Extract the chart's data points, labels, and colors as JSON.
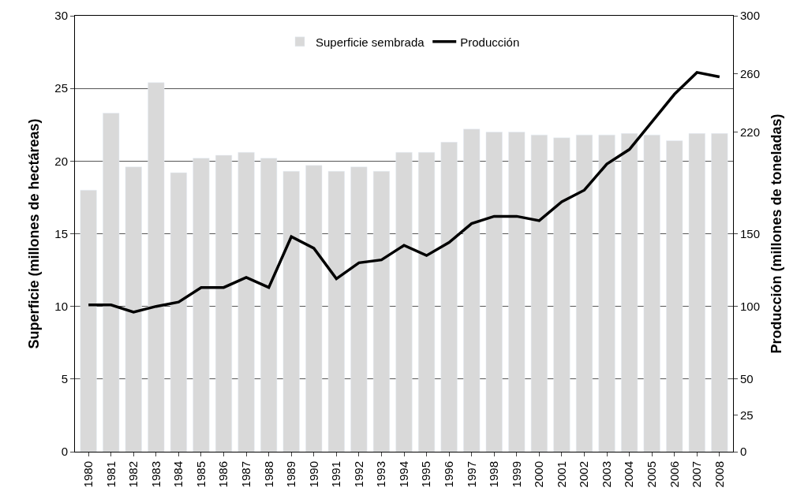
{
  "chart_data": {
    "type": "bar",
    "categories": [
      "1980",
      "1981",
      "1982",
      "1983",
      "1984",
      "1985",
      "1986",
      "1987",
      "1988",
      "1989",
      "1990",
      "1991",
      "1992",
      "1993",
      "1994",
      "1995",
      "1996",
      "1997",
      "1998",
      "1999",
      "2000",
      "2001",
      "2002",
      "2003",
      "2004",
      "2005",
      "2006",
      "2007",
      "2008"
    ],
    "series": [
      {
        "name": "Superficie sembrada",
        "color": "#d9d9d9",
        "values": [
          18.0,
          23.3,
          19.6,
          25.4,
          19.2,
          20.2,
          20.4,
          20.6,
          20.2,
          19.3,
          19.7,
          19.3,
          19.6,
          19.3,
          20.6,
          20.6,
          21.3,
          22.2,
          22.0,
          22.0,
          21.8,
          21.6,
          21.8,
          21.8,
          21.9,
          21.8,
          21.4,
          21.9,
          21.9
        ]
      },
      {
        "name": "Producción",
        "type": "line",
        "axis": "y2",
        "color": "#000000",
        "values": [
          101,
          101,
          96,
          100,
          103,
          113,
          113,
          120,
          113,
          148,
          140,
          119,
          130,
          132,
          142,
          135,
          144,
          157,
          162,
          162,
          159,
          172,
          180,
          198,
          208,
          227,
          246,
          261,
          258
        ]
      }
    ],
    "ylabel": "Superficie (millones de hectáreas)",
    "y2label": "Producción (millones de toneladas)",
    "ylim": [
      0,
      30
    ],
    "yticks": [
      0,
      5,
      10,
      15,
      20,
      25,
      30
    ],
    "y2lim": [
      0,
      300
    ],
    "y2ticks": [
      0,
      25,
      50,
      100,
      150,
      220,
      260,
      300
    ],
    "grid": "y",
    "legend": "top",
    "marker": "none",
    "line_style": "solid"
  }
}
